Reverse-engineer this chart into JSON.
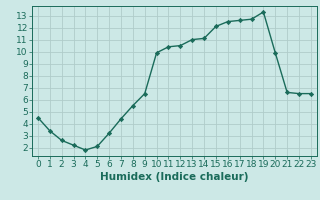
{
  "x": [
    0,
    1,
    2,
    3,
    4,
    5,
    6,
    7,
    8,
    9,
    10,
    11,
    12,
    13,
    14,
    15,
    16,
    17,
    18,
    19,
    20,
    21,
    22,
    23
  ],
  "y": [
    4.5,
    3.4,
    2.6,
    2.2,
    1.8,
    2.1,
    3.2,
    4.4,
    5.5,
    6.5,
    9.9,
    10.4,
    10.5,
    11.0,
    11.1,
    12.1,
    12.5,
    12.6,
    12.7,
    13.3,
    9.9,
    6.6,
    6.5,
    6.5
  ],
  "line_color": "#1a6b5a",
  "marker": "D",
  "marker_size": 2.2,
  "bg_color": "#cce8e6",
  "grid_major_color": "#b0ccca",
  "grid_minor_color": "#c8e0de",
  "xlabel": "Humidex (Indice chaleur)",
  "xlim": [
    -0.5,
    23.5
  ],
  "ylim": [
    1.3,
    13.8
  ],
  "yticks": [
    2,
    3,
    4,
    5,
    6,
    7,
    8,
    9,
    10,
    11,
    12,
    13
  ],
  "xticks": [
    0,
    1,
    2,
    3,
    4,
    5,
    6,
    7,
    8,
    9,
    10,
    11,
    12,
    13,
    14,
    15,
    16,
    17,
    18,
    19,
    20,
    21,
    22,
    23
  ],
  "tick_fontsize": 6.5,
  "xlabel_fontsize": 7.5,
  "line_width": 1.0
}
